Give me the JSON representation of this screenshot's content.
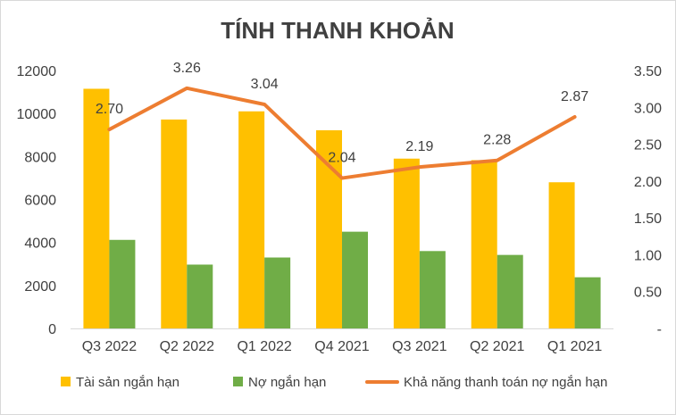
{
  "chart_data": {
    "type": "bar",
    "title": "TÍNH THANH KHOẢN",
    "categories": [
      "Q3 2022",
      "Q2 2022",
      "Q1 2022",
      "Q4 2021",
      "Q3 2021",
      "Q2 2021",
      "Q1 2021"
    ],
    "series": [
      {
        "name": "Tài sản ngắn hạn",
        "type": "bar",
        "axis": "left",
        "color": "#ffc000",
        "values": [
          11150,
          9720,
          10100,
          9220,
          7900,
          7830,
          6800
        ]
      },
      {
        "name": "Nợ ngắn hạn",
        "type": "bar",
        "axis": "left",
        "color": "#70ad47",
        "values": [
          4120,
          2970,
          3300,
          4500,
          3600,
          3420,
          2380
        ]
      },
      {
        "name": "Khả năng thanh toán nợ ngắn hạn",
        "type": "line",
        "axis": "right",
        "color": "#ed7d31",
        "values": [
          2.7,
          3.26,
          3.04,
          2.04,
          2.19,
          2.28,
          2.87
        ],
        "labels": [
          "2.70",
          "3.26",
          "3.04",
          "2.04",
          "2.19",
          "2.28",
          "2.87"
        ]
      }
    ],
    "y_left": {
      "min": 0,
      "max": 12000,
      "ticks": [
        "0",
        "2000",
        "4000",
        "6000",
        "8000",
        "10000",
        "12000"
      ]
    },
    "y_right": {
      "min": 0,
      "max": 3.5,
      "ticks": [
        "-",
        "0.50",
        "1.00",
        "1.50",
        "2.00",
        "2.50",
        "3.00",
        "3.50"
      ]
    },
    "grid": false,
    "legend_position": "bottom"
  }
}
